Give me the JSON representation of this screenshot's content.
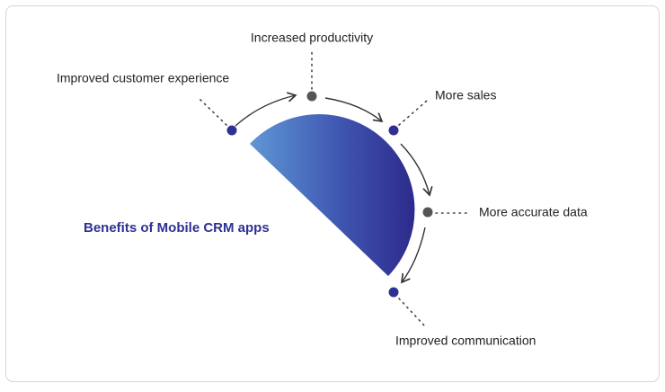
{
  "title": "Benefits of Mobile CRM apps",
  "items": [
    {
      "label": "Improved customer experience"
    },
    {
      "label": "Increased productivity"
    },
    {
      "label": "More sales"
    },
    {
      "label": "More accurate data"
    },
    {
      "label": "Improved communication"
    }
  ]
}
